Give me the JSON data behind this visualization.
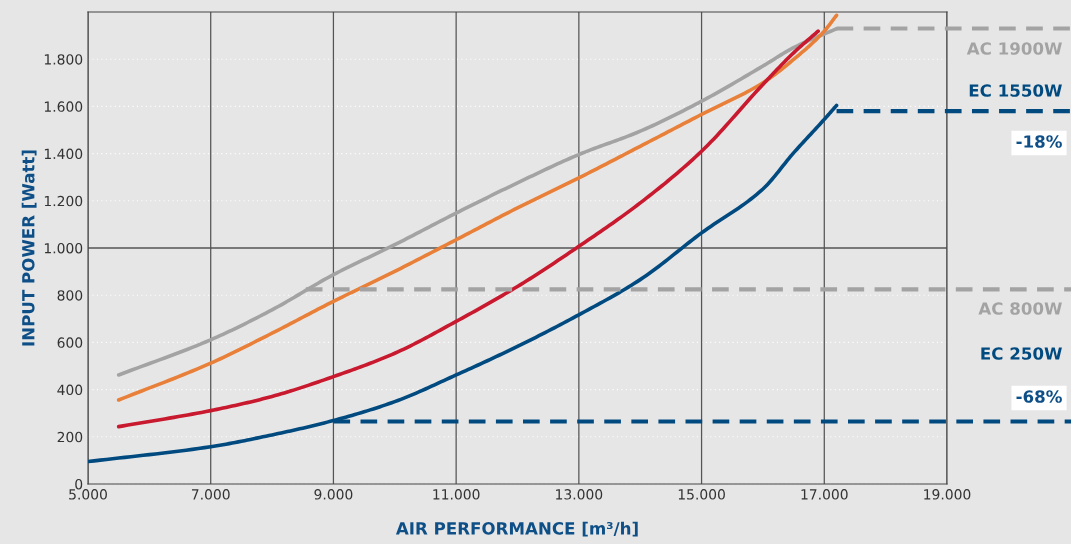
{
  "chart_data": {
    "type": "line",
    "xlabel": "AIR PERFORMANCE [m³/h]",
    "ylabel": "INPUT POWER [Watt]",
    "xlim": [
      5000,
      19000
    ],
    "ylim": [
      0,
      2000
    ],
    "xticks": [
      {
        "value": 5000,
        "label": "5.000"
      },
      {
        "value": 7000,
        "label": "7.000"
      },
      {
        "value": 9000,
        "label": "9.000"
      },
      {
        "value": 11000,
        "label": "11.000"
      },
      {
        "value": 13000,
        "label": "13.000"
      },
      {
        "value": 15000,
        "label": "15.000"
      },
      {
        "value": 17000,
        "label": "17.000"
      },
      {
        "value": 19000,
        "label": "19.000"
      }
    ],
    "yticks": [
      0,
      200,
      400,
      600,
      800,
      {
        "value": 1000,
        "label": "1.000"
      },
      {
        "value": 1200,
        "label": "1.200"
      },
      {
        "value": 1400,
        "label": "1.400"
      },
      {
        "value": 1600,
        "label": "1.600"
      },
      {
        "value": 1800,
        "label": "1.800"
      }
    ],
    "grid": true,
    "legend": false,
    "marker": "none",
    "line_style": "solid",
    "ref_lines": [
      {
        "axis": "y",
        "value": 1000,
        "color": "#555555"
      }
    ],
    "series": [
      {
        "color": "#a3a3a3",
        "x": [
          5500,
          7000,
          8000,
          9000,
          10000,
          11000,
          12000,
          13000,
          14000,
          15000,
          16000,
          16500,
          17200
        ],
        "values": [
          462,
          611,
          738,
          887,
          1014,
          1148,
          1276,
          1396,
          1495,
          1622,
          1771,
          1849,
          1929
        ]
      },
      {
        "color": "#e8803a",
        "x": [
          5500,
          7000,
          8000,
          9000,
          10000,
          11000,
          12000,
          13000,
          14000,
          15000,
          16000,
          16500,
          17000,
          17200
        ],
        "values": [
          356,
          512,
          639,
          774,
          901,
          1035,
          1170,
          1297,
          1431,
          1566,
          1700,
          1799,
          1919,
          1986
        ]
      },
      {
        "color": "#c8192e",
        "x": [
          5500,
          7000,
          8000,
          9000,
          10000,
          11000,
          12000,
          13000,
          14000,
          15000,
          16000,
          16500,
          16900
        ],
        "values": [
          243,
          311,
          371,
          455,
          554,
          689,
          837,
          1007,
          1191,
          1410,
          1693,
          1827,
          1919
        ]
      },
      {
        "color": "#004a80",
        "x": [
          5000,
          7000,
          8000,
          9000,
          10000,
          11000,
          12000,
          13000,
          14000,
          15000,
          16000,
          16500,
          17000,
          17200
        ],
        "values": [
          95,
          158,
          208,
          269,
          349,
          462,
          583,
          717,
          866,
          1064,
          1250,
          1403,
          1545,
          1604
        ]
      },
      {
        "name": "AC 1900W",
        "color": "#a3a3a3",
        "line_style": "dashed",
        "x": [
          17200,
          19000
        ],
        "values": [
          1930,
          1930
        ]
      },
      {
        "name": "EC 1550W",
        "color": "#004a80",
        "line_style": "dashed",
        "x": [
          17200,
          19000
        ],
        "values": [
          1580,
          1580
        ]
      },
      {
        "name": "AC 800W",
        "color": "#a3a3a3",
        "line_style": "dashed",
        "x": [
          8550,
          19000
        ],
        "values": [
          825,
          825
        ]
      },
      {
        "name": "EC 250W",
        "color": "#004a80",
        "line_style": "dashed",
        "x": [
          9000,
          19000
        ],
        "values": [
          265,
          265
        ]
      }
    ],
    "annotations": [
      "-18%",
      "-68%"
    ]
  }
}
